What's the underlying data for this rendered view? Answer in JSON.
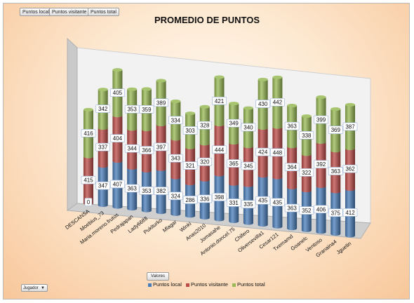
{
  "pivot_fields": [
    "Puntos local",
    "Puntos visitante",
    "Puntos total"
  ],
  "row_field": {
    "label": "Jugador",
    "arrow": "▼"
  },
  "values_button": "Valores",
  "colors": {
    "local": "#4a7ebb",
    "visitante": "#be4b48",
    "total": "#98b954"
  },
  "chart_data": {
    "type": "bar",
    "stacked": true,
    "render": "3d-cylinder",
    "title": "PROMEDIO DE PUNTOS",
    "xlabel": "",
    "ylabel": "",
    "legend": "bottom",
    "categories": [
      "DESCANSA",
      "Moebius_73",
      "Maria.moreno.frutos",
      "Pedrajapan",
      "Lady6688",
      "Pukiturko",
      "Mlagar",
      "Winki",
      "Anas2010",
      "Jomasahe",
      "Antonio.doncel.75",
      "Chifero",
      "Oliversevilla1",
      "Cesar121",
      "Txemamd",
      "Goanelc",
      "Ventoso",
      "Granaina4",
      "Jguetin"
    ],
    "series": [
      {
        "name": "Puntos local",
        "values": [
          0,
          347,
          407,
          363,
          353,
          382,
          324,
          286,
          336,
          398,
          331,
          335,
          435,
          435,
          363,
          352,
          406,
          375,
          412
        ]
      },
      {
        "name": "Puntos visitante",
        "values": [
          415,
          337,
          404,
          344,
          366,
          397,
          343,
          321,
          320,
          444,
          365,
          345,
          424,
          448,
          364,
          322,
          392,
          363,
          362
        ]
      },
      {
        "name": "Puntos total",
        "values": [
          416,
          342,
          405,
          353,
          359,
          389,
          334,
          303,
          328,
          421,
          349,
          340,
          430,
          442,
          363,
          338,
          399,
          369,
          387
        ]
      }
    ],
    "data_labels_first_column": [
      "0",
      "415",
      "416"
    ]
  }
}
